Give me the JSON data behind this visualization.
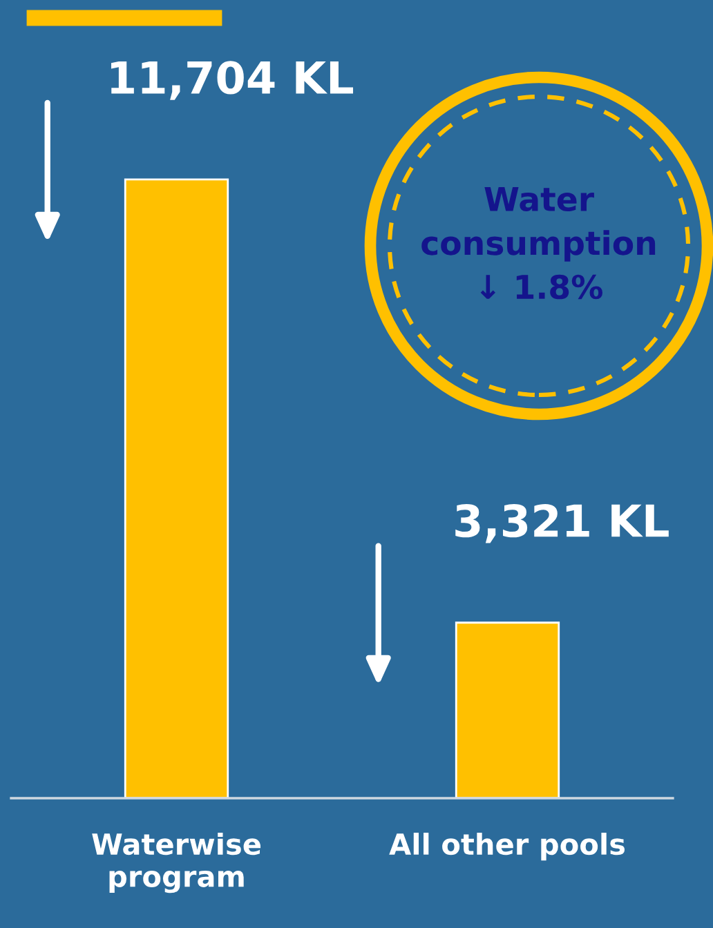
{
  "chart_data": {
    "type": "bar",
    "categories": [
      "Waterwise\nprogram",
      "All other pools"
    ],
    "values": [
      11704,
      3321
    ],
    "value_labels": [
      "11,704 KL",
      "3,321 KL"
    ],
    "color": "#ffc000",
    "ylim": [
      0,
      15100
    ],
    "tick_labels": "x",
    "grid": false,
    "annotations": [
      "Water\nconsumption\n↓ 1.8%"
    ]
  }
}
